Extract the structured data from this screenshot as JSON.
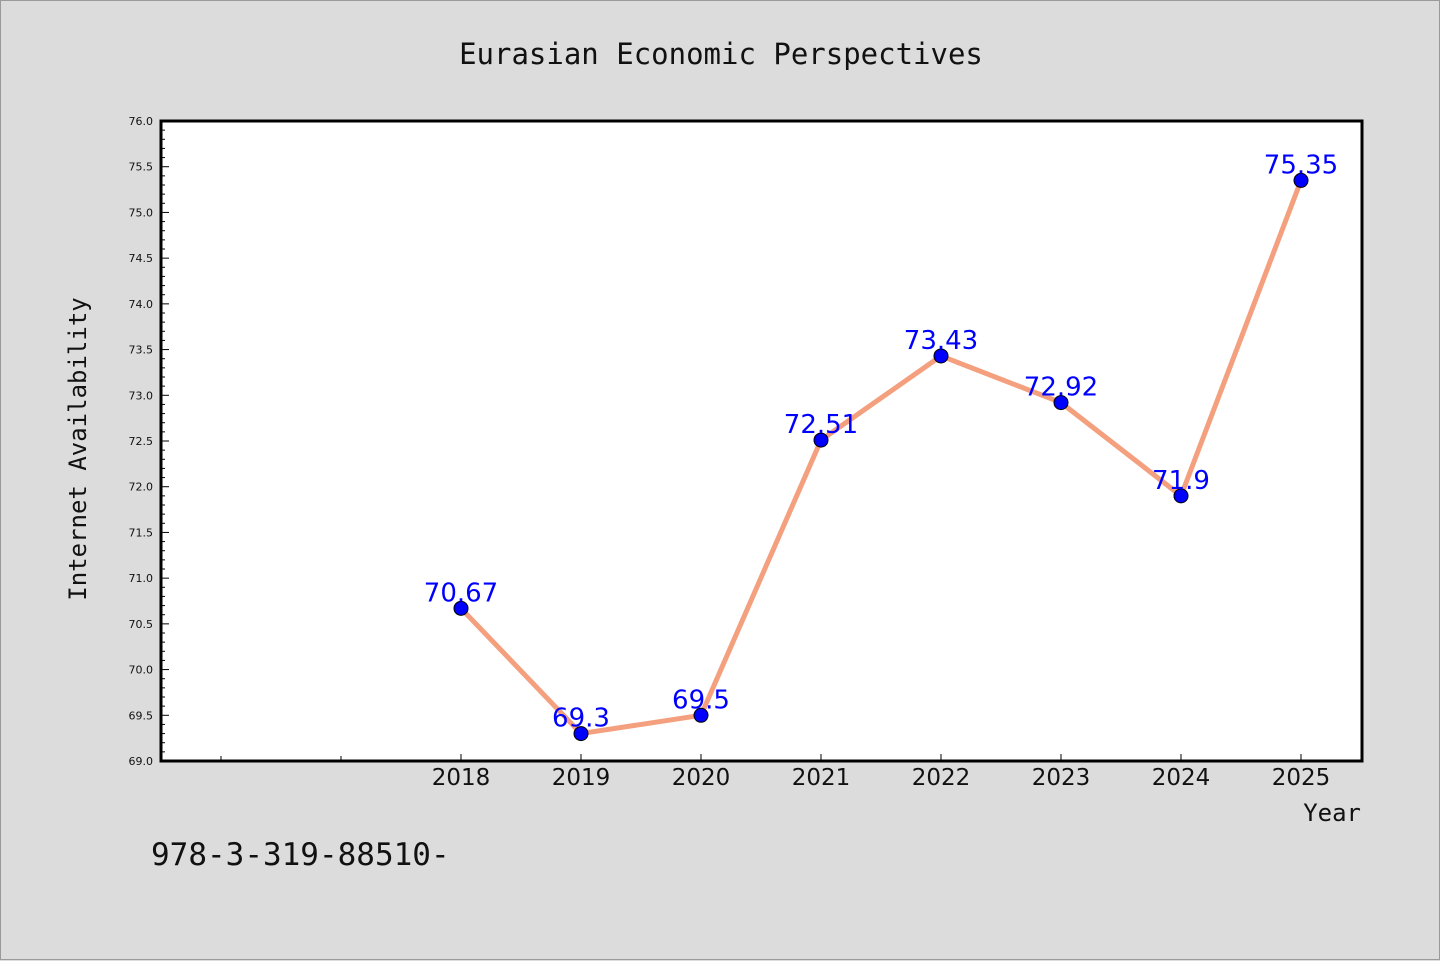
{
  "chart_data": {
    "type": "line",
    "title": "Eurasian Economic Perspectives",
    "xlabel": "Year",
    "ylabel": "Internet Availability",
    "x": [
      "2018",
      "2019",
      "2020",
      "2021",
      "2022",
      "2023",
      "2024",
      "2025"
    ],
    "series": [
      {
        "values": [
          70.67,
          69.3,
          69.5,
          72.51,
          73.43,
          72.92,
          71.9,
          75.35
        ],
        "labels": [
          "70.67",
          "69.3",
          "69.5",
          "72.51",
          "73.43",
          "72.92",
          "71.9",
          "75.35"
        ]
      }
    ],
    "ylim": [
      69.0,
      76.0
    ],
    "yticks": [
      "69.0",
      "69.5",
      "70.0",
      "70.5",
      "71.0",
      "71.5",
      "72.0",
      "72.5",
      "73.0",
      "73.5",
      "74.0",
      "74.5",
      "75.0",
      "75.5",
      "76.0"
    ],
    "grid": false,
    "colors": {
      "line": "#f4a07e",
      "marker": "#0000ff",
      "label": "#0000ff",
      "background": "#dcdcdc",
      "plot_area": "#ffffff"
    }
  },
  "footer": {
    "isbn": "978-3-319-88510-"
  }
}
